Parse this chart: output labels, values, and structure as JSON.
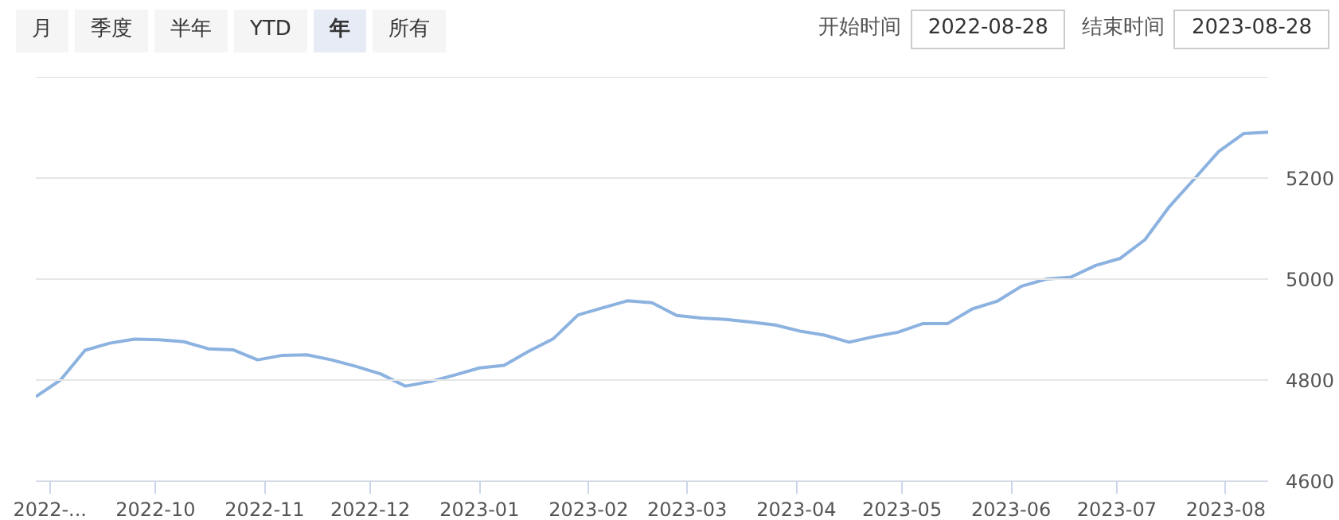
{
  "chart_data": {
    "type": "line",
    "annotations": [
      "月",
      "季度",
      "半年",
      "YTD",
      "年",
      "所有",
      "开始时间",
      "2022-08-28",
      "结束时间",
      "2023-08-28"
    ],
    "x": [
      "2022-08-28",
      "2022-09-04",
      "2022-09-11",
      "2022-09-18",
      "2022-09-25",
      "2022-10-02",
      "2022-10-09",
      "2022-10-16",
      "2022-10-23",
      "2022-10-30",
      "2022-11-06",
      "2022-11-13",
      "2022-11-20",
      "2022-11-27",
      "2022-12-04",
      "2022-12-11",
      "2022-12-18",
      "2022-12-25",
      "2023-01-01",
      "2023-01-08",
      "2023-01-15",
      "2023-01-22",
      "2023-01-29",
      "2023-02-05",
      "2023-02-12",
      "2023-02-19",
      "2023-02-26",
      "2023-03-05",
      "2023-03-12",
      "2023-03-19",
      "2023-03-26",
      "2023-04-02",
      "2023-04-09",
      "2023-04-16",
      "2023-04-23",
      "2023-04-30",
      "2023-05-07",
      "2023-05-14",
      "2023-05-21",
      "2023-05-28",
      "2023-06-04",
      "2023-06-11",
      "2023-06-18",
      "2023-06-25",
      "2023-07-02",
      "2023-07-09",
      "2023-07-16",
      "2023-07-23",
      "2023-07-30",
      "2023-08-06",
      "2023-08-13"
    ],
    "series": [
      {
        "color": "#8cb2e0",
        "values": [
          4767,
          4800,
          4859,
          4873,
          4881,
          4880,
          4876,
          4862,
          4860,
          4840,
          4849,
          4850,
          4840,
          4827,
          4812,
          4788,
          4797,
          4810,
          4824,
          4829,
          4857,
          4882,
          4929,
          4943,
          4957,
          4953,
          4928,
          4923,
          4920,
          4915,
          4909,
          4897,
          4889,
          4875,
          4886,
          4895,
          4912,
          4912,
          4941,
          4956,
          4986,
          5000,
          5004,
          5027,
          5041,
          5078,
          5144,
          5198,
          5253,
          5288,
          5291
        ]
      }
    ],
    "xlim": [
      "2022-08-28",
      "2023-08-13"
    ],
    "xticks": [
      {
        "value": "2022-09-01",
        "label": "2022-..."
      },
      {
        "value": "2022-10-01",
        "label": "2022-10"
      },
      {
        "value": "2022-11-01",
        "label": "2022-11"
      },
      {
        "value": "2022-12-01",
        "label": "2022-12"
      },
      {
        "value": "2023-01-01",
        "label": "2023-01"
      },
      {
        "value": "2023-02-01",
        "label": "2023-02"
      },
      {
        "value": "2023-03-01",
        "label": "2023-03"
      },
      {
        "value": "2023-04-01",
        "label": "2023-04"
      },
      {
        "value": "2023-05-01",
        "label": "2023-05"
      },
      {
        "value": "2023-06-01",
        "label": "2023-06"
      },
      {
        "value": "2023-07-01",
        "label": "2023-07"
      },
      {
        "value": "2023-08-01",
        "label": "2023-08"
      }
    ],
    "ylim": [
      4600,
      5400
    ],
    "yticks": [
      4600,
      4800,
      5000,
      5200,
      {
        "value": 5400,
        "label": null
      }
    ],
    "grid": "y",
    "marker": "none",
    "line_style": "solid"
  }
}
